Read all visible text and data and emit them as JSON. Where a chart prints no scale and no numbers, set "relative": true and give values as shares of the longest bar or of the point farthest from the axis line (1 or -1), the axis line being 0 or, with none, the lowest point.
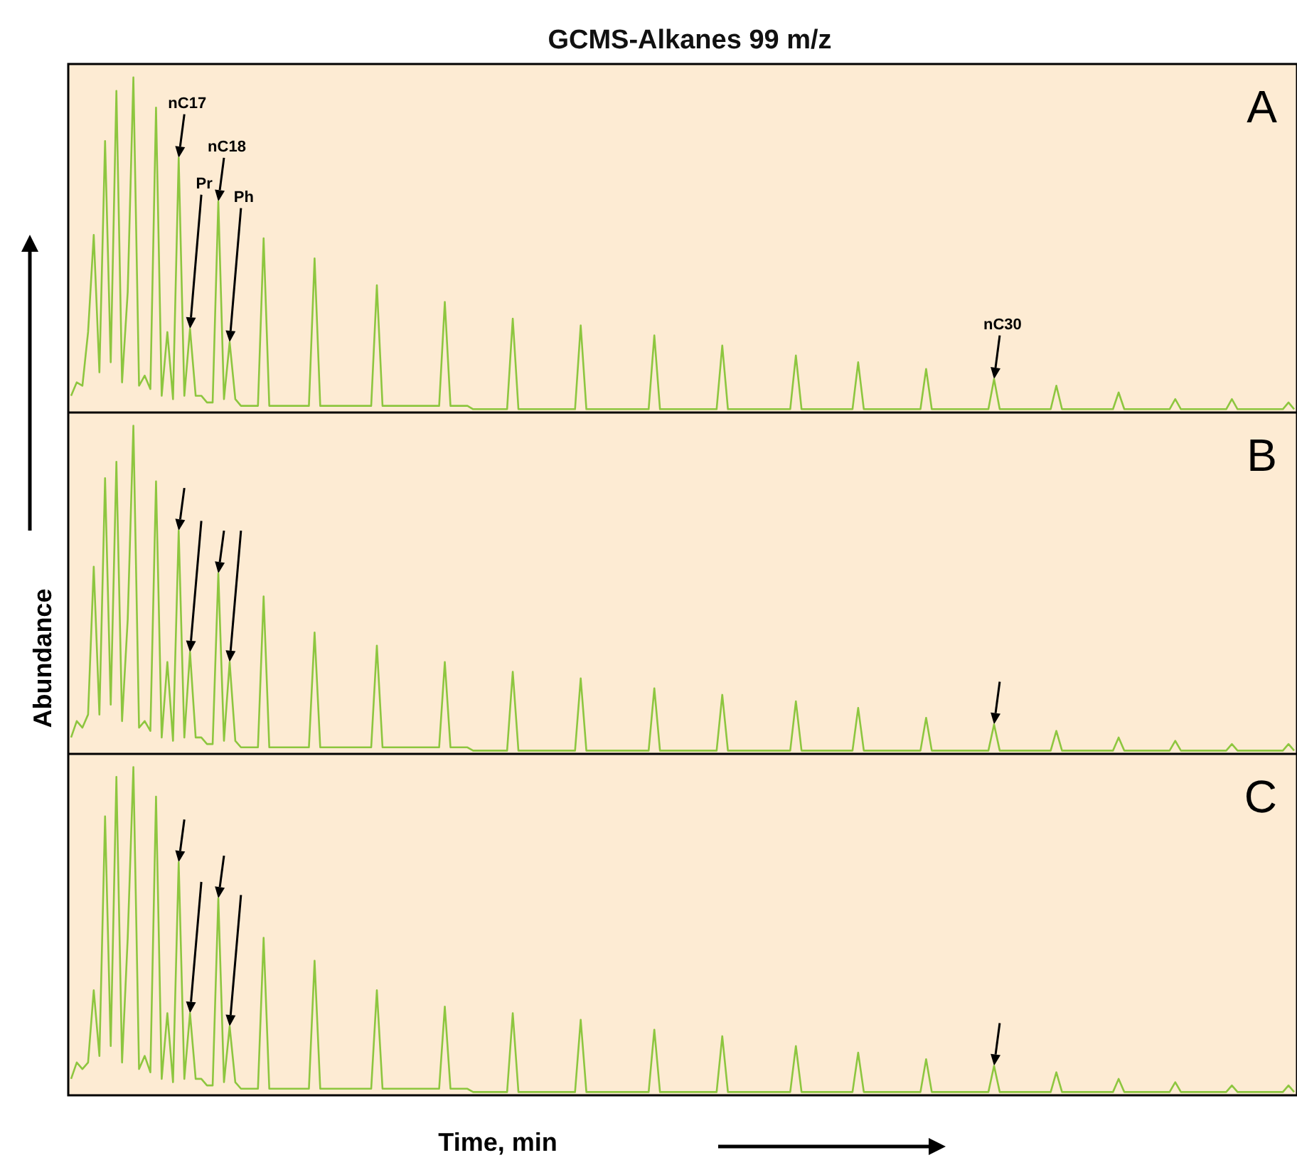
{
  "chart_data": [
    {
      "type": "line",
      "title": "GCMS-Alkanes 99 m/z",
      "subtitle": "A",
      "relative": true,
      "tick_labels": false,
      "grid": false,
      "marker": "none",
      "color": "#8dc63f",
      "categories": [
        null,
        null,
        null,
        null,
        null,
        null,
        null,
        null,
        null,
        null,
        null,
        null,
        null,
        null,
        null,
        null,
        null,
        null,
        null,
        null,
        null,
        null,
        null,
        null,
        null,
        null,
        null,
        null,
        null,
        null,
        null,
        null,
        null,
        null,
        null,
        null,
        null,
        null,
        null,
        null,
        null,
        null,
        null,
        null,
        null,
        null,
        null,
        null,
        null,
        null,
        null,
        null,
        null,
        null,
        null,
        null,
        null,
        null,
        null,
        null,
        null,
        null,
        null,
        null,
        null,
        null,
        null,
        null,
        null,
        null,
        null,
        null,
        null,
        null,
        null,
        null,
        null,
        null,
        null,
        null,
        null,
        null,
        null,
        null,
        null,
        null,
        null,
        null,
        null,
        null,
        null,
        null,
        null,
        null,
        null,
        null,
        null,
        null,
        null,
        null,
        null,
        null,
        null,
        null,
        null,
        null,
        null,
        null,
        null,
        null,
        null,
        null,
        null,
        null,
        null,
        null,
        null,
        null,
        null,
        null,
        null,
        null,
        null,
        null,
        null,
        null,
        null,
        null,
        null,
        null,
        null,
        null,
        null,
        null,
        null,
        null,
        null,
        null,
        null,
        null,
        null,
        null,
        null,
        null,
        null,
        null,
        null,
        null,
        null,
        null,
        null,
        null,
        null,
        null,
        null,
        null,
        null,
        null,
        null,
        null,
        null,
        null,
        null,
        null,
        null,
        null,
        null,
        null,
        null,
        null,
        null,
        null,
        null,
        null,
        null,
        null,
        null,
        null,
        null,
        null,
        null,
        null,
        null,
        null,
        null,
        null,
        null,
        null,
        null,
        null,
        null,
        null,
        null,
        null,
        null,
        null,
        null,
        null,
        null,
        null,
        null,
        null,
        null,
        null,
        null,
        null,
        null,
        null,
        null,
        null,
        null,
        null,
        null,
        null,
        null,
        null,
        null
      ],
      "values": [
        0.05,
        0.09,
        0.08,
        0.24,
        0.53,
        0.12,
        0.81,
        0.15,
        0.96,
        0.09,
        0.36,
        1,
        0.08,
        0.11,
        0.07,
        0.91,
        0.05,
        0.24,
        0.04,
        0.76,
        0.05,
        0.25,
        0.05,
        0.05,
        0.03,
        0.03,
        0.63,
        0.04,
        0.21,
        0.04,
        0.02,
        0.02,
        0.02,
        0.02,
        0.52,
        0.02,
        0.02,
        0.02,
        0.02,
        0.02,
        0.02,
        0.02,
        0.02,
        0.46,
        0.02,
        0.02,
        0.02,
        0.02,
        0.02,
        0.02,
        0.02,
        0.02,
        0.02,
        0.02,
        0.38,
        0.02,
        0.02,
        0.02,
        0.02,
        0.02,
        0.02,
        0.02,
        0.02,
        0.02,
        0.02,
        0.02,
        0.33,
        0.02,
        0.02,
        0.02,
        0.02,
        0.01,
        0.01,
        0.01,
        0.01,
        0.01,
        0.01,
        0.01,
        0.28,
        0.01,
        0.01,
        0.01,
        0.01,
        0.01,
        0.01,
        0.01,
        0.01,
        0.01,
        0.01,
        0.01,
        0.26,
        0.01,
        0.01,
        0.01,
        0.01,
        0.01,
        0.01,
        0.01,
        0.01,
        0.01,
        0.01,
        0.01,
        0.01,
        0.23,
        0.01,
        0.01,
        0.01,
        0.01,
        0.01,
        0.01,
        0.01,
        0.01,
        0.01,
        0.01,
        0.01,
        0.2,
        0.01,
        0.01,
        0.01,
        0.01,
        0.01,
        0.01,
        0.01,
        0.01,
        0.01,
        0.01,
        0.01,
        0.01,
        0.17,
        0.01,
        0.01,
        0.01,
        0.01,
        0.01,
        0.01,
        0.01,
        0.01,
        0.01,
        0.01,
        0.15,
        0.01,
        0.01,
        0.01,
        0.01,
        0.01,
        0.01,
        0.01,
        0.01,
        0.01,
        0.01,
        0.01,
        0.13,
        0.01,
        0.01,
        0.01,
        0.01,
        0.01,
        0.01,
        0.01,
        0.01,
        0.01,
        0.01,
        0.01,
        0.1,
        0.01,
        0.01,
        0.01,
        0.01,
        0.01,
        0.01,
        0.01,
        0.01,
        0.01,
        0.01,
        0.08,
        0.01,
        0.01,
        0.01,
        0.01,
        0.01,
        0.01,
        0.01,
        0.01,
        0.01,
        0.01,
        0.06,
        0.01,
        0.01,
        0.01,
        0.01,
        0.01,
        0.01,
        0.01,
        0.01,
        0.01,
        0.04,
        0.01,
        0.01,
        0.01,
        0.01,
        0.01,
        0.01,
        0.01,
        0.01,
        0.01,
        0.04,
        0.01,
        0.01,
        0.01,
        0.01,
        0.01,
        0.01,
        0.01,
        0.01,
        0.01,
        0.03,
        0.01
      ],
      "annotations": [
        "nC17",
        "Pr",
        "nC18",
        "Ph",
        "nC30"
      ]
    },
    {
      "type": "line",
      "subtitle": "B",
      "ylabel": "Abundance",
      "relative": true,
      "tick_labels": false,
      "grid": false,
      "marker": "none",
      "color": "#8dc63f",
      "categories": [
        null,
        null,
        null,
        null,
        null,
        null,
        null,
        null,
        null,
        null,
        null,
        null,
        null,
        null,
        null,
        null,
        null,
        null,
        null,
        null,
        null,
        null,
        null,
        null,
        null,
        null,
        null,
        null,
        null,
        null,
        null,
        null,
        null,
        null,
        null,
        null,
        null,
        null,
        null,
        null,
        null,
        null,
        null,
        null,
        null,
        null,
        null,
        null,
        null,
        null,
        null,
        null,
        null,
        null,
        null,
        null,
        null,
        null,
        null,
        null,
        null,
        null,
        null,
        null,
        null,
        null,
        null,
        null,
        null,
        null,
        null,
        null,
        null,
        null,
        null,
        null,
        null,
        null,
        null,
        null,
        null,
        null,
        null,
        null,
        null,
        null,
        null,
        null,
        null,
        null,
        null,
        null,
        null,
        null,
        null,
        null,
        null,
        null,
        null,
        null,
        null,
        null,
        null,
        null,
        null,
        null,
        null,
        null,
        null,
        null,
        null,
        null,
        null,
        null,
        null,
        null,
        null,
        null,
        null,
        null,
        null,
        null,
        null,
        null,
        null,
        null,
        null,
        null,
        null,
        null,
        null,
        null,
        null,
        null,
        null,
        null,
        null,
        null,
        null,
        null,
        null,
        null,
        null,
        null,
        null,
        null,
        null,
        null,
        null,
        null,
        null,
        null,
        null,
        null,
        null,
        null,
        null,
        null,
        null,
        null,
        null,
        null,
        null,
        null,
        null,
        null,
        null,
        null,
        null,
        null,
        null,
        null,
        null,
        null,
        null,
        null,
        null,
        null,
        null,
        null,
        null,
        null,
        null,
        null,
        null,
        null,
        null,
        null,
        null,
        null,
        null,
        null,
        null,
        null,
        null,
        null,
        null,
        null,
        null,
        null,
        null,
        null,
        null,
        null,
        null,
        null,
        null,
        null,
        null,
        null,
        null,
        null,
        null,
        null,
        null,
        null,
        null
      ],
      "values": [
        0.05,
        0.1,
        0.08,
        0.12,
        0.57,
        0.12,
        0.84,
        0.15,
        0.89,
        0.1,
        0.41,
        1,
        0.08,
        0.1,
        0.07,
        0.83,
        0.05,
        0.28,
        0.04,
        0.68,
        0.05,
        0.31,
        0.05,
        0.05,
        0.03,
        0.03,
        0.55,
        0.04,
        0.28,
        0.04,
        0.02,
        0.02,
        0.02,
        0.02,
        0.48,
        0.02,
        0.02,
        0.02,
        0.02,
        0.02,
        0.02,
        0.02,
        0.02,
        0.37,
        0.02,
        0.02,
        0.02,
        0.02,
        0.02,
        0.02,
        0.02,
        0.02,
        0.02,
        0.02,
        0.33,
        0.02,
        0.02,
        0.02,
        0.02,
        0.02,
        0.02,
        0.02,
        0.02,
        0.02,
        0.02,
        0.02,
        0.28,
        0.02,
        0.02,
        0.02,
        0.02,
        0.01,
        0.01,
        0.01,
        0.01,
        0.01,
        0.01,
        0.01,
        0.25,
        0.01,
        0.01,
        0.01,
        0.01,
        0.01,
        0.01,
        0.01,
        0.01,
        0.01,
        0.01,
        0.01,
        0.23,
        0.01,
        0.01,
        0.01,
        0.01,
        0.01,
        0.01,
        0.01,
        0.01,
        0.01,
        0.01,
        0.01,
        0.01,
        0.2,
        0.01,
        0.01,
        0.01,
        0.01,
        0.01,
        0.01,
        0.01,
        0.01,
        0.01,
        0.01,
        0.01,
        0.18,
        0.01,
        0.01,
        0.01,
        0.01,
        0.01,
        0.01,
        0.01,
        0.01,
        0.01,
        0.01,
        0.01,
        0.01,
        0.16,
        0.01,
        0.01,
        0.01,
        0.01,
        0.01,
        0.01,
        0.01,
        0.01,
        0.01,
        0.01,
        0.14,
        0.01,
        0.01,
        0.01,
        0.01,
        0.01,
        0.01,
        0.01,
        0.01,
        0.01,
        0.01,
        0.01,
        0.11,
        0.01,
        0.01,
        0.01,
        0.01,
        0.01,
        0.01,
        0.01,
        0.01,
        0.01,
        0.01,
        0.01,
        0.09,
        0.01,
        0.01,
        0.01,
        0.01,
        0.01,
        0.01,
        0.01,
        0.01,
        0.01,
        0.01,
        0.07,
        0.01,
        0.01,
        0.01,
        0.01,
        0.01,
        0.01,
        0.01,
        0.01,
        0.01,
        0.01,
        0.05,
        0.01,
        0.01,
        0.01,
        0.01,
        0.01,
        0.01,
        0.01,
        0.01,
        0.01,
        0.04,
        0.01,
        0.01,
        0.01,
        0.01,
        0.01,
        0.01,
        0.01,
        0.01,
        0.01,
        0.03,
        0.01,
        0.01,
        0.01,
        0.01,
        0.01,
        0.01,
        0.01,
        0.01,
        0.01,
        0.03,
        0.01
      ]
    },
    {
      "type": "line",
      "subtitle": "C",
      "xlabel": "Time, min",
      "relative": true,
      "tick_labels": false,
      "grid": false,
      "marker": "none",
      "color": "#8dc63f",
      "categories": [
        null,
        null,
        null,
        null,
        null,
        null,
        null,
        null,
        null,
        null,
        null,
        null,
        null,
        null,
        null,
        null,
        null,
        null,
        null,
        null,
        null,
        null,
        null,
        null,
        null,
        null,
        null,
        null,
        null,
        null,
        null,
        null,
        null,
        null,
        null,
        null,
        null,
        null,
        null,
        null,
        null,
        null,
        null,
        null,
        null,
        null,
        null,
        null,
        null,
        null,
        null,
        null,
        null,
        null,
        null,
        null,
        null,
        null,
        null,
        null,
        null,
        null,
        null,
        null,
        null,
        null,
        null,
        null,
        null,
        null,
        null,
        null,
        null,
        null,
        null,
        null,
        null,
        null,
        null,
        null,
        null,
        null,
        null,
        null,
        null,
        null,
        null,
        null,
        null,
        null,
        null,
        null,
        null,
        null,
        null,
        null,
        null,
        null,
        null,
        null,
        null,
        null,
        null,
        null,
        null,
        null,
        null,
        null,
        null,
        null,
        null,
        null,
        null,
        null,
        null,
        null,
        null,
        null,
        null,
        null,
        null,
        null,
        null,
        null,
        null,
        null,
        null,
        null,
        null,
        null,
        null,
        null,
        null,
        null,
        null,
        null,
        null,
        null,
        null,
        null,
        null,
        null,
        null,
        null,
        null,
        null,
        null,
        null,
        null,
        null,
        null,
        null,
        null,
        null,
        null,
        null,
        null,
        null,
        null,
        null,
        null,
        null,
        null,
        null,
        null,
        null,
        null,
        null,
        null,
        null,
        null,
        null,
        null,
        null,
        null,
        null,
        null,
        null,
        null,
        null,
        null,
        null,
        null,
        null,
        null,
        null,
        null,
        null,
        null,
        null,
        null,
        null,
        null,
        null,
        null,
        null,
        null,
        null,
        null,
        null,
        null,
        null,
        null,
        null,
        null,
        null,
        null,
        null,
        null,
        null,
        null,
        null,
        null,
        null,
        null,
        null,
        null
      ],
      "values": [
        0.05,
        0.1,
        0.08,
        0.1,
        0.32,
        0.12,
        0.85,
        0.15,
        0.97,
        0.1,
        0.48,
        1,
        0.08,
        0.12,
        0.07,
        0.91,
        0.05,
        0.25,
        0.04,
        0.71,
        0.05,
        0.25,
        0.05,
        0.05,
        0.03,
        0.03,
        0.6,
        0.04,
        0.21,
        0.04,
        0.02,
        0.02,
        0.02,
        0.02,
        0.48,
        0.02,
        0.02,
        0.02,
        0.02,
        0.02,
        0.02,
        0.02,
        0.02,
        0.41,
        0.02,
        0.02,
        0.02,
        0.02,
        0.02,
        0.02,
        0.02,
        0.02,
        0.02,
        0.02,
        0.32,
        0.02,
        0.02,
        0.02,
        0.02,
        0.02,
        0.02,
        0.02,
        0.02,
        0.02,
        0.02,
        0.02,
        0.27,
        0.02,
        0.02,
        0.02,
        0.02,
        0.01,
        0.01,
        0.01,
        0.01,
        0.01,
        0.01,
        0.01,
        0.25,
        0.01,
        0.01,
        0.01,
        0.01,
        0.01,
        0.01,
        0.01,
        0.01,
        0.01,
        0.01,
        0.01,
        0.23,
        0.01,
        0.01,
        0.01,
        0.01,
        0.01,
        0.01,
        0.01,
        0.01,
        0.01,
        0.01,
        0.01,
        0.01,
        0.2,
        0.01,
        0.01,
        0.01,
        0.01,
        0.01,
        0.01,
        0.01,
        0.01,
        0.01,
        0.01,
        0.01,
        0.18,
        0.01,
        0.01,
        0.01,
        0.01,
        0.01,
        0.01,
        0.01,
        0.01,
        0.01,
        0.01,
        0.01,
        0.01,
        0.15,
        0.01,
        0.01,
        0.01,
        0.01,
        0.01,
        0.01,
        0.01,
        0.01,
        0.01,
        0.01,
        0.13,
        0.01,
        0.01,
        0.01,
        0.01,
        0.01,
        0.01,
        0.01,
        0.01,
        0.01,
        0.01,
        0.01,
        0.11,
        0.01,
        0.01,
        0.01,
        0.01,
        0.01,
        0.01,
        0.01,
        0.01,
        0.01,
        0.01,
        0.01,
        0.09,
        0.01,
        0.01,
        0.01,
        0.01,
        0.01,
        0.01,
        0.01,
        0.01,
        0.01,
        0.01,
        0.07,
        0.01,
        0.01,
        0.01,
        0.01,
        0.01,
        0.01,
        0.01,
        0.01,
        0.01,
        0.01,
        0.05,
        0.01,
        0.01,
        0.01,
        0.01,
        0.01,
        0.01,
        0.01,
        0.01,
        0.01,
        0.04,
        0.01,
        0.01,
        0.01,
        0.01,
        0.01,
        0.01,
        0.01,
        0.01,
        0.01,
        0.03,
        0.01,
        0.01,
        0.01,
        0.01,
        0.01,
        0.01,
        0.01,
        0.01,
        0.01,
        0.03,
        0.01
      ]
    }
  ]
}
